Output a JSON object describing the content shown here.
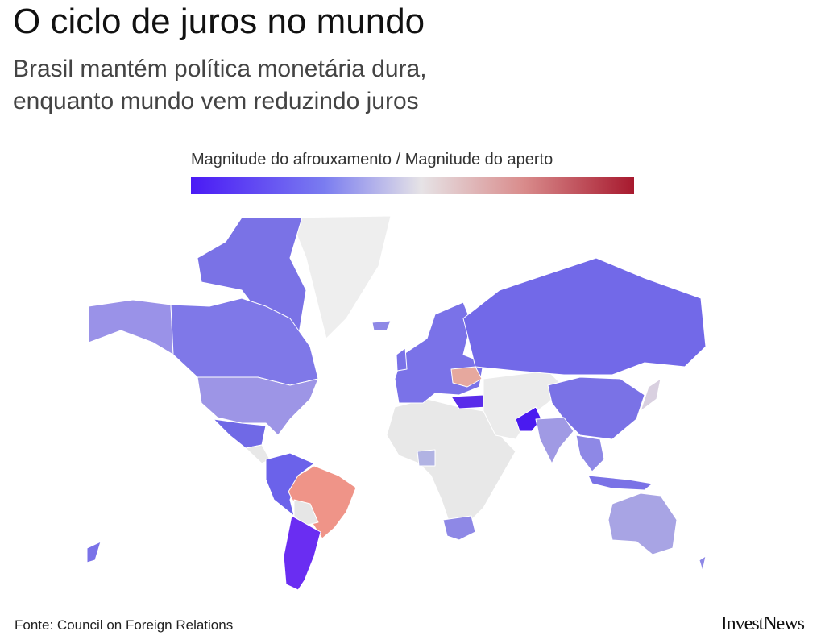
{
  "header": {
    "title": "O ciclo de juros no mundo",
    "subtitle": [
      "Brasil mantém política monetária dura,",
      "enquanto mundo vem reduzindo juros"
    ]
  },
  "legend": {
    "label": "Magnitude do afrouxamento / Magnitude do aperto"
  },
  "footer": {
    "source": "Fonte:  Council on Foreign Relations",
    "brand": "InvestNews"
  }
}
